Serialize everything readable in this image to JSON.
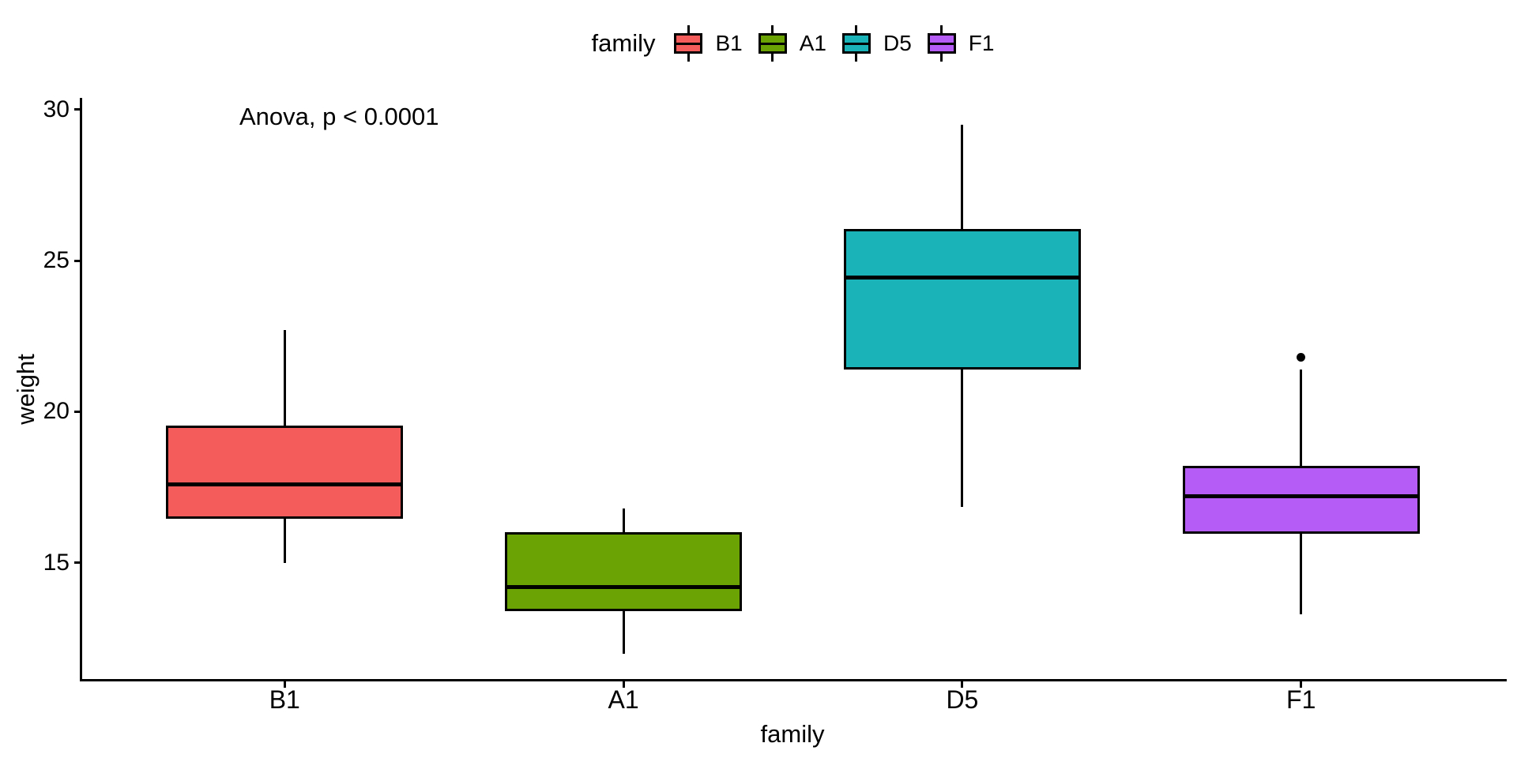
{
  "figure": {
    "background": "#FFFFFF"
  },
  "chart_data": {
    "type": "boxplot",
    "title": "",
    "xlabel": "family",
    "ylabel": "weight",
    "legend_title": "family",
    "legend_position": "top",
    "annotation": "Anova, p < 0.0001",
    "grid": false,
    "axis_color": "#000000",
    "text_color": "#000000",
    "categories": [
      "B1",
      "A1",
      "D5",
      "F1"
    ],
    "yticks": [
      15,
      20,
      25,
      30
    ],
    "ylim": [
      11.1,
      30.36
    ],
    "groups": [
      {
        "label": "B1",
        "color": "#F35C5B",
        "whisker_low": 15.0,
        "q1": 16.45,
        "median": 17.6,
        "q3": 19.55,
        "whisker_high": 22.7,
        "outliers": []
      },
      {
        "label": "A1",
        "color": "#6BA305",
        "whisker_low": 12.0,
        "q1": 13.4,
        "median": 14.2,
        "q3": 16.0,
        "whisker_high": 16.8,
        "outliers": []
      },
      {
        "label": "D5",
        "color": "#1AB3B8",
        "whisker_low": 16.85,
        "q1": 21.4,
        "median": 24.45,
        "q3": 26.05,
        "whisker_high": 29.5,
        "outliers": []
      },
      {
        "label": "F1",
        "color": "#B55CF7",
        "whisker_low": 13.3,
        "q1": 15.95,
        "median": 17.2,
        "q3": 18.2,
        "whisker_high": 21.4,
        "outliers": [
          21.8
        ]
      }
    ]
  }
}
